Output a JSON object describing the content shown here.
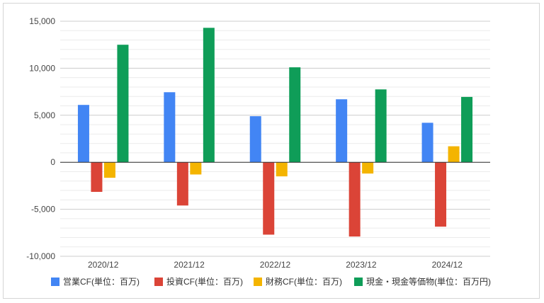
{
  "chart_data": {
    "type": "bar",
    "title": "",
    "xlabel": "",
    "ylabel": "",
    "ylim": [
      -10000,
      15000
    ],
    "yticks": [
      15000,
      10000,
      5000,
      0,
      -5000,
      -10000
    ],
    "ytick_labels": [
      "15,000",
      "10,000",
      "5,000",
      "0",
      "-5,000",
      "-10,000"
    ],
    "grid": true,
    "legend_position": "bottom",
    "categories": [
      "2020/12",
      "2021/12",
      "2022/12",
      "2023/12",
      "2024/12"
    ],
    "series": [
      {
        "name": "営業CF(単位：百万)",
        "color": "#4285f4",
        "values": [
          6100,
          7450,
          4900,
          6700,
          4200
        ]
      },
      {
        "name": "投資CF(単位：百万)",
        "color": "#db4437",
        "values": [
          -3150,
          -4600,
          -7700,
          -7900,
          -6850
        ]
      },
      {
        "name": "財務CF(単位：百万)",
        "color": "#f4b400",
        "values": [
          -1650,
          -1300,
          -1500,
          -1200,
          1700
        ]
      },
      {
        "name": "現金・現金等価物(単位：百万円)",
        "color": "#0f9d58",
        "values": [
          12500,
          14300,
          10100,
          7750,
          6950
        ]
      }
    ]
  }
}
